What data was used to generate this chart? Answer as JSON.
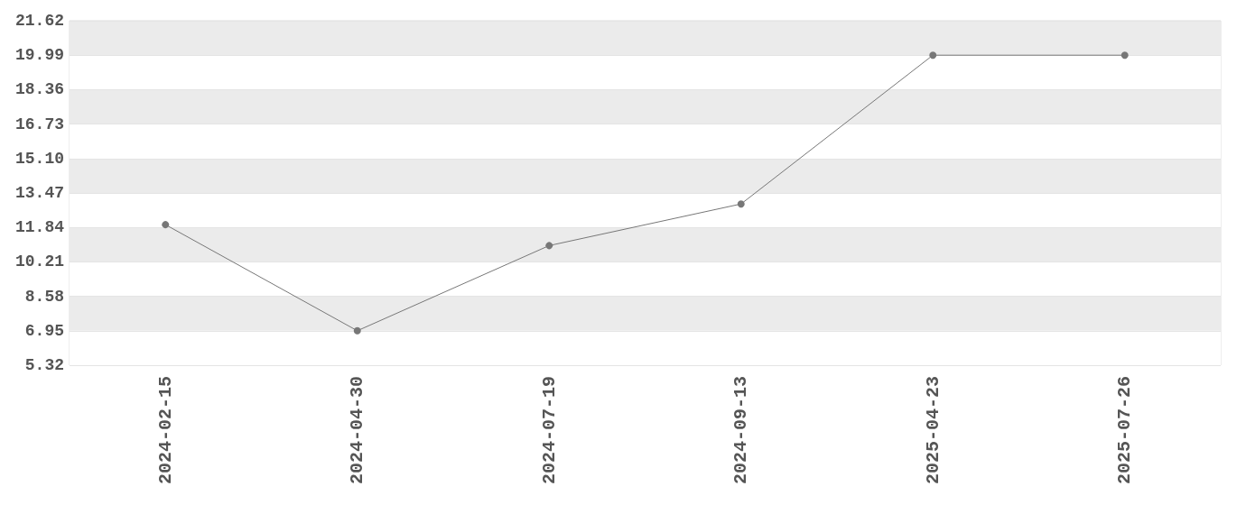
{
  "chart_data": {
    "type": "line",
    "categories": [
      "2024-02-15",
      "2024-04-30",
      "2024-07-19",
      "2024-09-13",
      "2025-04-23",
      "2025-07-26"
    ],
    "series": [
      {
        "color": "#777777",
        "values": [
          11.97,
          6.95,
          10.98,
          12.95,
          19.99,
          19.99
        ]
      }
    ],
    "ylim": [
      5.32,
      21.62
    ],
    "yticks": [
      5.32,
      6.95,
      8.58,
      10.21,
      11.84,
      13.47,
      {
        "value": 15.1,
        "label": "15.10"
      },
      16.73,
      18.36,
      19.99,
      21.62
    ],
    "grid": "y",
    "marker": "circle",
    "line_style": "solid"
  }
}
